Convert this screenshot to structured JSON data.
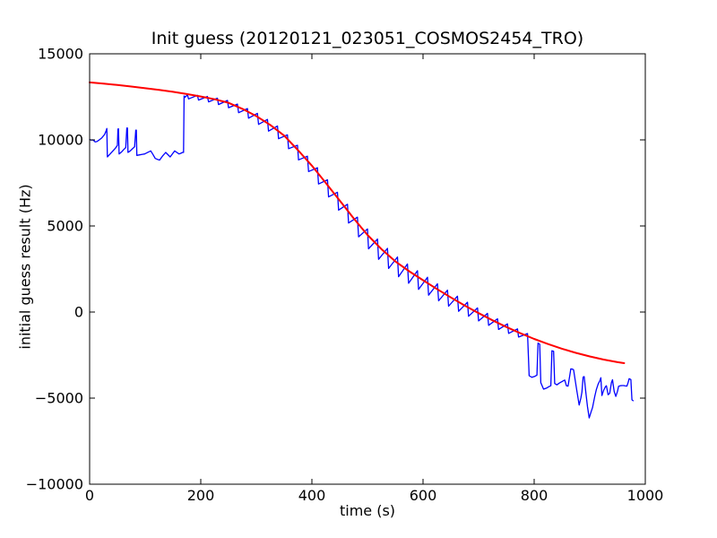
{
  "chart_data": {
    "type": "line",
    "title": "Init guess (20120121_023051_COSMOS2454_TRO)",
    "xlabel": "time (s)",
    "ylabel": "initial guess result (Hz)",
    "xlim": [
      0,
      1000
    ],
    "ylim": [
      -10000,
      15000
    ],
    "xticks": [
      0,
      200,
      400,
      600,
      800,
      1000
    ],
    "yticks": [
      -10000,
      -5000,
      0,
      5000,
      10000,
      15000
    ],
    "grid": false,
    "legend": "none",
    "series": [
      {
        "name": "initial-guess-measured",
        "color": "#0000ff",
        "width": 1.3,
        "points": [
          [
            0,
            10020
          ],
          [
            3,
            9990
          ],
          [
            6,
            10000
          ],
          [
            10,
            9880
          ],
          [
            13,
            9900
          ],
          [
            17,
            9990
          ],
          [
            22,
            10120
          ],
          [
            27,
            10310
          ],
          [
            30,
            10550
          ],
          [
            31,
            10660
          ],
          [
            32,
            9010
          ],
          [
            36,
            9150
          ],
          [
            41,
            9330
          ],
          [
            46,
            9500
          ],
          [
            50,
            9680
          ],
          [
            51,
            10630
          ],
          [
            52,
            10640
          ],
          [
            53,
            9180
          ],
          [
            57,
            9280
          ],
          [
            61,
            9420
          ],
          [
            65,
            9550
          ],
          [
            67,
            10690
          ],
          [
            68,
            10690
          ],
          [
            69,
            9270
          ],
          [
            73,
            9360
          ],
          [
            77,
            9480
          ],
          [
            81,
            9600
          ],
          [
            83,
            10570
          ],
          [
            84,
            10570
          ],
          [
            85,
            9100
          ],
          [
            90,
            9130
          ],
          [
            95,
            9160
          ],
          [
            99,
            9180
          ],
          [
            105,
            9280
          ],
          [
            110,
            9360
          ],
          [
            114,
            9150
          ],
          [
            118,
            8920
          ],
          [
            122,
            8870
          ],
          [
            126,
            8830
          ],
          [
            131,
            9050
          ],
          [
            137,
            9270
          ],
          [
            141,
            9140
          ],
          [
            145,
            9010
          ],
          [
            149,
            9190
          ],
          [
            153,
            9360
          ],
          [
            157,
            9270
          ],
          [
            161,
            9180
          ],
          [
            164,
            9220
          ],
          [
            167,
            9270
          ],
          [
            169,
            9270
          ],
          [
            170,
            12550
          ],
          [
            172,
            12480
          ],
          [
            176,
            12620
          ],
          [
            178,
            12380
          ],
          [
            194,
            12590
          ],
          [
            196,
            12310
          ],
          [
            212,
            12520
          ],
          [
            214,
            12210
          ],
          [
            230,
            12420
          ],
          [
            232,
            12050
          ],
          [
            248,
            12290
          ],
          [
            250,
            11870
          ],
          [
            266,
            12080
          ],
          [
            268,
            11580
          ],
          [
            284,
            11820
          ],
          [
            286,
            11260
          ],
          [
            302,
            11540
          ],
          [
            304,
            10900
          ],
          [
            320,
            11190
          ],
          [
            322,
            10510
          ],
          [
            338,
            10800
          ],
          [
            340,
            10070
          ],
          [
            356,
            10290
          ],
          [
            358,
            9490
          ],
          [
            374,
            9690
          ],
          [
            376,
            8840
          ],
          [
            392,
            9050
          ],
          [
            394,
            8160
          ],
          [
            410,
            8380
          ],
          [
            412,
            7440
          ],
          [
            428,
            7680
          ],
          [
            430,
            6690
          ],
          [
            446,
            6960
          ],
          [
            448,
            5920
          ],
          [
            464,
            6260
          ],
          [
            466,
            5170
          ],
          [
            482,
            5510
          ],
          [
            484,
            4370
          ],
          [
            500,
            4830
          ],
          [
            502,
            3670
          ],
          [
            518,
            4240
          ],
          [
            520,
            3060
          ],
          [
            536,
            3700
          ],
          [
            538,
            2530
          ],
          [
            554,
            3200
          ],
          [
            556,
            2050
          ],
          [
            572,
            2790
          ],
          [
            574,
            1670
          ],
          [
            590,
            2400
          ],
          [
            592,
            1320
          ],
          [
            608,
            2020
          ],
          [
            610,
            980
          ],
          [
            626,
            1640
          ],
          [
            628,
            650
          ],
          [
            644,
            1270
          ],
          [
            646,
            340
          ],
          [
            662,
            920
          ],
          [
            664,
            40
          ],
          [
            680,
            570
          ],
          [
            682,
            -245
          ],
          [
            698,
            240
          ],
          [
            700,
            -515
          ],
          [
            716,
            -80
          ],
          [
            718,
            -770
          ],
          [
            734,
            -390
          ],
          [
            736,
            -1010
          ],
          [
            752,
            -690
          ],
          [
            754,
            -1240
          ],
          [
            770,
            -980
          ],
          [
            772,
            -1455
          ],
          [
            788,
            -1250
          ],
          [
            791,
            -3700
          ],
          [
            796,
            -3790
          ],
          [
            801,
            -3740
          ],
          [
            805,
            -3660
          ],
          [
            807,
            -1800
          ],
          [
            810,
            -1870
          ],
          [
            812,
            -4100
          ],
          [
            817,
            -4480
          ],
          [
            822,
            -4420
          ],
          [
            827,
            -4330
          ],
          [
            830,
            -4280
          ],
          [
            832,
            -2250
          ],
          [
            835,
            -2280
          ],
          [
            837,
            -4150
          ],
          [
            841,
            -4230
          ],
          [
            845,
            -4130
          ],
          [
            850,
            -4040
          ],
          [
            855,
            -3950
          ],
          [
            858,
            -4280
          ],
          [
            861,
            -4300
          ],
          [
            864,
            -3700
          ],
          [
            866,
            -3300
          ],
          [
            869,
            -3320
          ],
          [
            871,
            -3360
          ],
          [
            874,
            -4000
          ],
          [
            877,
            -4600
          ],
          [
            881,
            -5400
          ],
          [
            884,
            -5000
          ],
          [
            886,
            -4650
          ],
          [
            888,
            -3780
          ],
          [
            890,
            -3750
          ],
          [
            893,
            -4700
          ],
          [
            896,
            -5500
          ],
          [
            899,
            -6150
          ],
          [
            902,
            -5850
          ],
          [
            905,
            -5550
          ],
          [
            909,
            -4900
          ],
          [
            912,
            -4500
          ],
          [
            915,
            -4200
          ],
          [
            918,
            -4000
          ],
          [
            920,
            -3820
          ],
          [
            922,
            -4850
          ],
          [
            925,
            -4550
          ],
          [
            928,
            -4350
          ],
          [
            930,
            -4280
          ],
          [
            933,
            -4800
          ],
          [
            936,
            -4720
          ],
          [
            939,
            -4100
          ],
          [
            941,
            -3930
          ],
          [
            944,
            -4620
          ],
          [
            947,
            -4900
          ],
          [
            950,
            -4600
          ],
          [
            952,
            -4320
          ],
          [
            955,
            -4280
          ],
          [
            958,
            -4270
          ],
          [
            961,
            -4270
          ],
          [
            964,
            -4290
          ],
          [
            967,
            -4300
          ],
          [
            969,
            -4100
          ],
          [
            971,
            -3870
          ],
          [
            974,
            -3920
          ],
          [
            976,
            -5100
          ],
          [
            978,
            -5150
          ]
        ]
      },
      {
        "name": "fit-curve",
        "color": "#ff0000",
        "width": 2.0,
        "points": [
          [
            0,
            13340
          ],
          [
            25,
            13270
          ],
          [
            50,
            13190
          ],
          [
            75,
            13100
          ],
          [
            100,
            13000
          ],
          [
            125,
            12900
          ],
          [
            150,
            12790
          ],
          [
            175,
            12660
          ],
          [
            200,
            12520
          ],
          [
            225,
            12360
          ],
          [
            250,
            12150
          ],
          [
            275,
            11800
          ],
          [
            300,
            11380
          ],
          [
            325,
            10870
          ],
          [
            350,
            10250
          ],
          [
            375,
            9400
          ],
          [
            400,
            8500
          ],
          [
            425,
            7500
          ],
          [
            450,
            6480
          ],
          [
            475,
            5450
          ],
          [
            500,
            4480
          ],
          [
            525,
            3660
          ],
          [
            550,
            2950
          ],
          [
            575,
            2370
          ],
          [
            600,
            1850
          ],
          [
            625,
            1340
          ],
          [
            650,
            850
          ],
          [
            675,
            380
          ],
          [
            700,
            -60
          ],
          [
            725,
            -480
          ],
          [
            750,
            -870
          ],
          [
            775,
            -1230
          ],
          [
            800,
            -1560
          ],
          [
            825,
            -1860
          ],
          [
            850,
            -2130
          ],
          [
            875,
            -2370
          ],
          [
            900,
            -2580
          ],
          [
            925,
            -2760
          ],
          [
            950,
            -2910
          ],
          [
            962,
            -2970
          ]
        ]
      }
    ]
  }
}
